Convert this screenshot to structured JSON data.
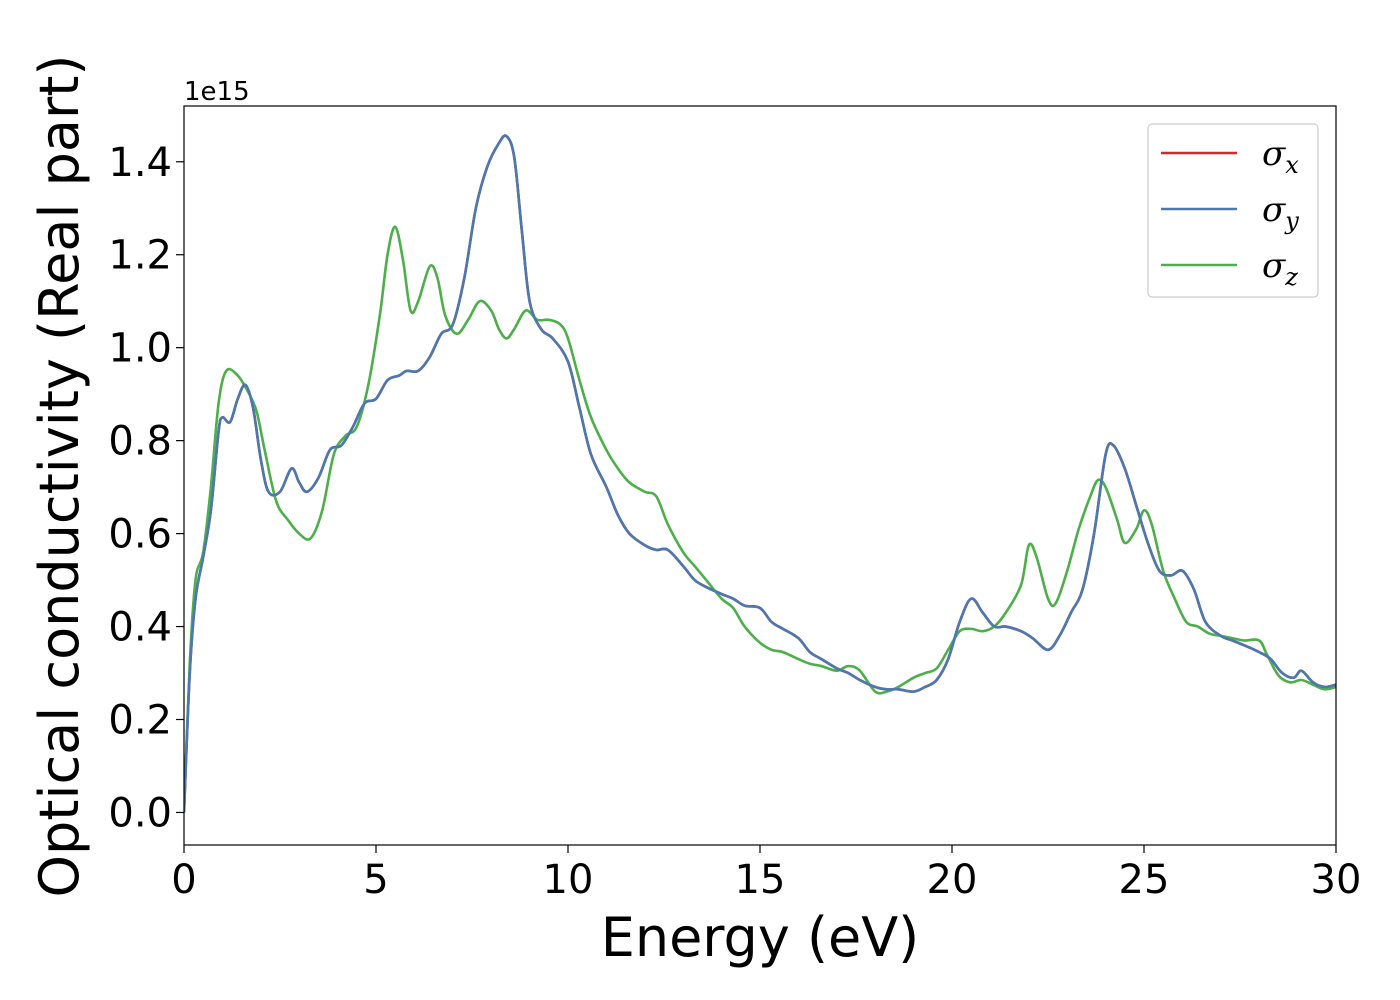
{
  "chart_data": {
    "type": "line",
    "title": "",
    "xlabel": "Energy (eV)",
    "ylabel": "Optical conductivity (Real part)",
    "y_offset_label": "1e15",
    "xlim": [
      0,
      30
    ],
    "ylim": [
      -0.07,
      1.52
    ],
    "x_ticks": [
      0,
      5,
      10,
      15,
      20,
      25,
      30
    ],
    "x_tick_labels": [
      "0",
      "5",
      "10",
      "15",
      "20",
      "25",
      "30"
    ],
    "y_ticks": [
      0.0,
      0.2,
      0.4,
      0.6,
      0.8,
      1.0,
      1.2,
      1.4
    ],
    "y_tick_labels": [
      "0.0",
      "0.2",
      "0.4",
      "0.6",
      "0.8",
      "1.0",
      "1.2",
      "1.4"
    ],
    "grid": false,
    "legend_position": "top-right",
    "series": [
      {
        "name": "σx",
        "symbol": "σ",
        "subscript": "x",
        "color": "#d62728",
        "points": [
          [
            0,
            0
          ],
          [
            0.15,
            0.3
          ],
          [
            0.3,
            0.46
          ],
          [
            0.5,
            0.55
          ],
          [
            0.7,
            0.65
          ],
          [
            0.9,
            0.82
          ],
          [
            1.0,
            0.85
          ],
          [
            1.2,
            0.84
          ],
          [
            1.4,
            0.89
          ],
          [
            1.6,
            0.92
          ],
          [
            1.8,
            0.87
          ],
          [
            2.0,
            0.76
          ],
          [
            2.2,
            0.69
          ],
          [
            2.5,
            0.69
          ],
          [
            2.8,
            0.74
          ],
          [
            3.0,
            0.71
          ],
          [
            3.2,
            0.69
          ],
          [
            3.5,
            0.72
          ],
          [
            3.8,
            0.78
          ],
          [
            4.1,
            0.79
          ],
          [
            4.4,
            0.83
          ],
          [
            4.7,
            0.88
          ],
          [
            5.0,
            0.89
          ],
          [
            5.3,
            0.93
          ],
          [
            5.6,
            0.94
          ],
          [
            5.8,
            0.95
          ],
          [
            6.1,
            0.95
          ],
          [
            6.4,
            0.98
          ],
          [
            6.7,
            1.03
          ],
          [
            7.0,
            1.05
          ],
          [
            7.3,
            1.15
          ],
          [
            7.6,
            1.3
          ],
          [
            7.9,
            1.39
          ],
          [
            8.2,
            1.44
          ],
          [
            8.4,
            1.455
          ],
          [
            8.6,
            1.41
          ],
          [
            8.8,
            1.25
          ],
          [
            9.0,
            1.1
          ],
          [
            9.3,
            1.04
          ],
          [
            9.6,
            1.02
          ],
          [
            10.0,
            0.97
          ],
          [
            10.3,
            0.87
          ],
          [
            10.6,
            0.77
          ],
          [
            11.0,
            0.7
          ],
          [
            11.3,
            0.64
          ],
          [
            11.6,
            0.6
          ],
          [
            12.0,
            0.575
          ],
          [
            12.3,
            0.565
          ],
          [
            12.6,
            0.565
          ],
          [
            13.0,
            0.53
          ],
          [
            13.3,
            0.5
          ],
          [
            13.6,
            0.485
          ],
          [
            14.0,
            0.47
          ],
          [
            14.3,
            0.46
          ],
          [
            14.6,
            0.445
          ],
          [
            15.0,
            0.44
          ],
          [
            15.3,
            0.41
          ],
          [
            15.6,
            0.395
          ],
          [
            16.0,
            0.375
          ],
          [
            16.3,
            0.345
          ],
          [
            16.6,
            0.33
          ],
          [
            17.0,
            0.31
          ],
          [
            17.3,
            0.3
          ],
          [
            17.6,
            0.285
          ],
          [
            18.0,
            0.27
          ],
          [
            18.3,
            0.265
          ],
          [
            18.6,
            0.265
          ],
          [
            19.0,
            0.26
          ],
          [
            19.3,
            0.27
          ],
          [
            19.6,
            0.285
          ],
          [
            19.9,
            0.33
          ],
          [
            20.2,
            0.41
          ],
          [
            20.5,
            0.46
          ],
          [
            20.8,
            0.43
          ],
          [
            21.1,
            0.4
          ],
          [
            21.4,
            0.4
          ],
          [
            21.8,
            0.39
          ],
          [
            22.1,
            0.375
          ],
          [
            22.5,
            0.35
          ],
          [
            22.8,
            0.38
          ],
          [
            23.1,
            0.43
          ],
          [
            23.4,
            0.48
          ],
          [
            23.7,
            0.6
          ],
          [
            24.0,
            0.77
          ],
          [
            24.2,
            0.79
          ],
          [
            24.5,
            0.74
          ],
          [
            24.8,
            0.66
          ],
          [
            25.1,
            0.58
          ],
          [
            25.4,
            0.52
          ],
          [
            25.7,
            0.51
          ],
          [
            26.0,
            0.52
          ],
          [
            26.3,
            0.48
          ],
          [
            26.6,
            0.41
          ],
          [
            27.0,
            0.38
          ],
          [
            27.3,
            0.37
          ],
          [
            27.6,
            0.36
          ],
          [
            28.0,
            0.345
          ],
          [
            28.3,
            0.33
          ],
          [
            28.6,
            0.3
          ],
          [
            28.9,
            0.29
          ],
          [
            29.1,
            0.305
          ],
          [
            29.4,
            0.28
          ],
          [
            29.7,
            0.27
          ],
          [
            30.0,
            0.275
          ]
        ]
      },
      {
        "name": "σy",
        "symbol": "σ",
        "subscript": "y",
        "color": "#4a78b0",
        "points": [
          [
            0,
            0
          ],
          [
            0.15,
            0.3
          ],
          [
            0.3,
            0.46
          ],
          [
            0.5,
            0.55
          ],
          [
            0.7,
            0.65
          ],
          [
            0.9,
            0.82
          ],
          [
            1.0,
            0.85
          ],
          [
            1.2,
            0.84
          ],
          [
            1.4,
            0.89
          ],
          [
            1.6,
            0.92
          ],
          [
            1.8,
            0.87
          ],
          [
            2.0,
            0.76
          ],
          [
            2.2,
            0.69
          ],
          [
            2.5,
            0.69
          ],
          [
            2.8,
            0.74
          ],
          [
            3.0,
            0.71
          ],
          [
            3.2,
            0.69
          ],
          [
            3.5,
            0.72
          ],
          [
            3.8,
            0.78
          ],
          [
            4.1,
            0.79
          ],
          [
            4.4,
            0.83
          ],
          [
            4.7,
            0.88
          ],
          [
            5.0,
            0.89
          ],
          [
            5.3,
            0.93
          ],
          [
            5.6,
            0.94
          ],
          [
            5.8,
            0.95
          ],
          [
            6.1,
            0.95
          ],
          [
            6.4,
            0.98
          ],
          [
            6.7,
            1.03
          ],
          [
            7.0,
            1.05
          ],
          [
            7.3,
            1.15
          ],
          [
            7.6,
            1.3
          ],
          [
            7.9,
            1.39
          ],
          [
            8.2,
            1.44
          ],
          [
            8.4,
            1.455
          ],
          [
            8.6,
            1.41
          ],
          [
            8.8,
            1.25
          ],
          [
            9.0,
            1.1
          ],
          [
            9.3,
            1.04
          ],
          [
            9.6,
            1.02
          ],
          [
            10.0,
            0.97
          ],
          [
            10.3,
            0.87
          ],
          [
            10.6,
            0.77
          ],
          [
            11.0,
            0.7
          ],
          [
            11.3,
            0.64
          ],
          [
            11.6,
            0.6
          ],
          [
            12.0,
            0.575
          ],
          [
            12.3,
            0.565
          ],
          [
            12.6,
            0.565
          ],
          [
            13.0,
            0.53
          ],
          [
            13.3,
            0.5
          ],
          [
            13.6,
            0.485
          ],
          [
            14.0,
            0.47
          ],
          [
            14.3,
            0.46
          ],
          [
            14.6,
            0.445
          ],
          [
            15.0,
            0.44
          ],
          [
            15.3,
            0.41
          ],
          [
            15.6,
            0.395
          ],
          [
            16.0,
            0.375
          ],
          [
            16.3,
            0.345
          ],
          [
            16.6,
            0.33
          ],
          [
            17.0,
            0.31
          ],
          [
            17.3,
            0.3
          ],
          [
            17.6,
            0.285
          ],
          [
            18.0,
            0.27
          ],
          [
            18.3,
            0.265
          ],
          [
            18.6,
            0.265
          ],
          [
            19.0,
            0.26
          ],
          [
            19.3,
            0.27
          ],
          [
            19.6,
            0.285
          ],
          [
            19.9,
            0.33
          ],
          [
            20.2,
            0.41
          ],
          [
            20.5,
            0.46
          ],
          [
            20.8,
            0.43
          ],
          [
            21.1,
            0.4
          ],
          [
            21.4,
            0.4
          ],
          [
            21.8,
            0.39
          ],
          [
            22.1,
            0.375
          ],
          [
            22.5,
            0.35
          ],
          [
            22.8,
            0.38
          ],
          [
            23.1,
            0.43
          ],
          [
            23.4,
            0.48
          ],
          [
            23.7,
            0.6
          ],
          [
            24.0,
            0.77
          ],
          [
            24.2,
            0.79
          ],
          [
            24.5,
            0.74
          ],
          [
            24.8,
            0.66
          ],
          [
            25.1,
            0.58
          ],
          [
            25.4,
            0.52
          ],
          [
            25.7,
            0.51
          ],
          [
            26.0,
            0.52
          ],
          [
            26.3,
            0.48
          ],
          [
            26.6,
            0.41
          ],
          [
            27.0,
            0.38
          ],
          [
            27.3,
            0.37
          ],
          [
            27.6,
            0.36
          ],
          [
            28.0,
            0.345
          ],
          [
            28.3,
            0.33
          ],
          [
            28.6,
            0.3
          ],
          [
            28.9,
            0.29
          ],
          [
            29.1,
            0.305
          ],
          [
            29.4,
            0.28
          ],
          [
            29.7,
            0.27
          ],
          [
            30.0,
            0.275
          ]
        ]
      },
      {
        "name": "σz",
        "symbol": "σ",
        "subscript": "z",
        "color": "#4daf4a",
        "points": [
          [
            0,
            0
          ],
          [
            0.15,
            0.32
          ],
          [
            0.3,
            0.5
          ],
          [
            0.5,
            0.56
          ],
          [
            0.7,
            0.7
          ],
          [
            0.9,
            0.88
          ],
          [
            1.1,
            0.95
          ],
          [
            1.4,
            0.94
          ],
          [
            1.7,
            0.9
          ],
          [
            1.9,
            0.86
          ],
          [
            2.1,
            0.78
          ],
          [
            2.4,
            0.67
          ],
          [
            2.7,
            0.63
          ],
          [
            3.0,
            0.6
          ],
          [
            3.3,
            0.59
          ],
          [
            3.6,
            0.65
          ],
          [
            3.9,
            0.77
          ],
          [
            4.2,
            0.81
          ],
          [
            4.5,
            0.83
          ],
          [
            4.8,
            0.92
          ],
          [
            5.1,
            1.07
          ],
          [
            5.3,
            1.2
          ],
          [
            5.5,
            1.26
          ],
          [
            5.7,
            1.19
          ],
          [
            5.9,
            1.08
          ],
          [
            6.1,
            1.1
          ],
          [
            6.4,
            1.175
          ],
          [
            6.6,
            1.15
          ],
          [
            6.8,
            1.07
          ],
          [
            7.1,
            1.03
          ],
          [
            7.4,
            1.06
          ],
          [
            7.7,
            1.1
          ],
          [
            8.0,
            1.08
          ],
          [
            8.2,
            1.04
          ],
          [
            8.4,
            1.02
          ],
          [
            8.6,
            1.04
          ],
          [
            8.9,
            1.08
          ],
          [
            9.2,
            1.06
          ],
          [
            9.5,
            1.06
          ],
          [
            9.8,
            1.05
          ],
          [
            10.0,
            1.02
          ],
          [
            10.3,
            0.93
          ],
          [
            10.6,
            0.85
          ],
          [
            11.0,
            0.78
          ],
          [
            11.3,
            0.74
          ],
          [
            11.6,
            0.71
          ],
          [
            12.0,
            0.69
          ],
          [
            12.3,
            0.68
          ],
          [
            12.6,
            0.62
          ],
          [
            13.0,
            0.56
          ],
          [
            13.3,
            0.53
          ],
          [
            13.6,
            0.5
          ],
          [
            14.0,
            0.46
          ],
          [
            14.3,
            0.44
          ],
          [
            14.6,
            0.4
          ],
          [
            15.0,
            0.365
          ],
          [
            15.3,
            0.35
          ],
          [
            15.6,
            0.345
          ],
          [
            16.0,
            0.33
          ],
          [
            16.3,
            0.32
          ],
          [
            16.6,
            0.315
          ],
          [
            17.0,
            0.305
          ],
          [
            17.3,
            0.315
          ],
          [
            17.6,
            0.305
          ],
          [
            18.0,
            0.26
          ],
          [
            18.3,
            0.26
          ],
          [
            18.6,
            0.27
          ],
          [
            19.0,
            0.29
          ],
          [
            19.3,
            0.3
          ],
          [
            19.6,
            0.31
          ],
          [
            19.9,
            0.35
          ],
          [
            20.2,
            0.39
          ],
          [
            20.5,
            0.395
          ],
          [
            20.8,
            0.39
          ],
          [
            21.1,
            0.4
          ],
          [
            21.4,
            0.43
          ],
          [
            21.8,
            0.49
          ],
          [
            22.0,
            0.575
          ],
          [
            22.2,
            0.55
          ],
          [
            22.5,
            0.46
          ],
          [
            22.7,
            0.45
          ],
          [
            23.0,
            0.52
          ],
          [
            23.3,
            0.61
          ],
          [
            23.6,
            0.68
          ],
          [
            23.8,
            0.715
          ],
          [
            24.0,
            0.7
          ],
          [
            24.3,
            0.63
          ],
          [
            24.5,
            0.58
          ],
          [
            24.8,
            0.61
          ],
          [
            25.0,
            0.65
          ],
          [
            25.2,
            0.62
          ],
          [
            25.5,
            0.52
          ],
          [
            25.8,
            0.46
          ],
          [
            26.1,
            0.41
          ],
          [
            26.4,
            0.4
          ],
          [
            26.7,
            0.385
          ],
          [
            27.0,
            0.38
          ],
          [
            27.3,
            0.375
          ],
          [
            27.6,
            0.37
          ],
          [
            28.0,
            0.37
          ],
          [
            28.2,
            0.34
          ],
          [
            28.5,
            0.295
          ],
          [
            28.8,
            0.28
          ],
          [
            29.1,
            0.285
          ],
          [
            29.4,
            0.275
          ],
          [
            29.7,
            0.265
          ],
          [
            30.0,
            0.27
          ]
        ]
      }
    ]
  }
}
